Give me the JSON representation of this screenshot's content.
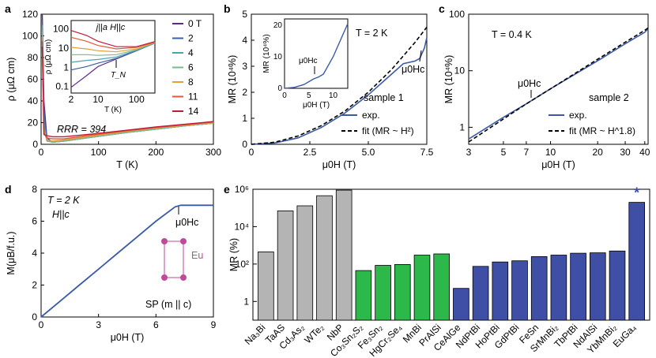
{
  "chart_data": [
    {
      "panel": "a",
      "type": "line",
      "xlabel": "T (K)",
      "ylabel": "ρ (μΩ cm)",
      "xlim": [
        0,
        300
      ],
      "ylim": [
        0,
        120
      ],
      "xticks": [
        "0",
        "100",
        "200",
        "300"
      ],
      "yticks": [
        "0",
        "20",
        "40",
        "60",
        "80",
        "100",
        "120"
      ],
      "annotation": "RRR = 394",
      "series": [
        {
          "name": "0 T",
          "color": "#5b2a86",
          "x": [
            2,
            5,
            10,
            20,
            40,
            80,
            150,
            200,
            250,
            300
          ],
          "y": [
            120,
            40,
            6,
            2,
            3,
            6,
            11,
            14,
            17,
            19.5
          ]
        },
        {
          "name": "2",
          "color": "#3a5fa8",
          "x": [
            2,
            5,
            10,
            20,
            40,
            80,
            150,
            200,
            250,
            300
          ],
          "y": [
            115,
            30,
            4,
            2,
            3,
            6,
            11,
            14,
            17,
            19.5
          ]
        },
        {
          "name": "4",
          "color": "#4aa3b5",
          "x": [
            2,
            5,
            10,
            20,
            40,
            80,
            150,
            200,
            250,
            300
          ],
          "y": [
            110,
            20,
            3,
            2,
            3,
            6,
            11,
            14,
            17,
            19.5
          ]
        },
        {
          "name": "6",
          "color": "#7ab98a",
          "x": [
            2,
            5,
            10,
            20,
            40,
            80,
            150,
            200,
            250,
            300
          ],
          "y": [
            105,
            15,
            3,
            2,
            3,
            6,
            11,
            14,
            17,
            19.5
          ]
        },
        {
          "name": "8",
          "color": "#e2a23a",
          "x": [
            2,
            5,
            10,
            20,
            40,
            80,
            150,
            200,
            250,
            300
          ],
          "y": [
            100,
            12,
            4,
            3,
            4,
            7,
            12,
            15,
            17.5,
            20
          ]
        },
        {
          "name": "11",
          "color": "#e05a3a",
          "x": [
            2,
            5,
            10,
            20,
            40,
            80,
            150,
            200,
            250,
            300
          ],
          "y": [
            95,
            10,
            6,
            5,
            5,
            8,
            12.5,
            15.5,
            18,
            20.5
          ]
        },
        {
          "name": "14",
          "color": "#c21a3a",
          "x": [
            2,
            5,
            10,
            20,
            40,
            80,
            150,
            200,
            250,
            300
          ],
          "y": [
            90,
            9,
            8,
            7,
            7,
            9,
            13,
            16,
            18.5,
            21
          ]
        }
      ],
      "inset": {
        "title": "j||a  H||c",
        "xlabel": "T (K)",
        "ylabel": "ρ (μΩ cm)",
        "xticks": [
          "2",
          "10",
          "100"
        ],
        "yticks": [
          "0.1",
          "1",
          "10",
          "100"
        ],
        "annotation": "T_N"
      }
    },
    {
      "panel": "b",
      "type": "line",
      "xlabel": "μ0H (T)",
      "ylabel": "MR (10⁴%)",
      "xlim": [
        0,
        7.5
      ],
      "ylim": [
        0,
        5
      ],
      "xticks": [
        "0",
        "2.5",
        "5.0",
        "7.5"
      ],
      "yticks": [
        "0",
        "1",
        "2",
        "3",
        "4",
        "5"
      ],
      "annotation_T": "T = 2 K",
      "sample": "sample 1",
      "hc_label": "μ0Hc",
      "series": [
        {
          "name": "exp.",
          "color": "#3a5aa8",
          "style": "solid",
          "x": [
            0,
            1,
            2,
            3,
            4,
            5,
            6,
            6.5,
            7,
            7.2,
            7.4,
            7.5
          ],
          "y": [
            0,
            0.05,
            0.25,
            0.65,
            1.2,
            1.9,
            2.7,
            3.1,
            3.2,
            3.3,
            3.7,
            4.1
          ]
        },
        {
          "name": "fit (MR ~ H²)",
          "color": "#000000",
          "style": "dashed",
          "x": [
            0,
            1,
            2,
            3,
            4,
            5,
            6,
            7,
            7.5
          ],
          "y": [
            0,
            0.08,
            0.32,
            0.72,
            1.28,
            2.0,
            2.88,
            3.92,
            4.5
          ]
        }
      ],
      "inset": {
        "ylabel": "MR (10⁴%)",
        "xlabel": "μ0H (T)",
        "xticks": [
          "0",
          "5",
          "10"
        ],
        "yticks": [
          "0",
          "10",
          "20"
        ],
        "hc_label": "μ0Hc"
      }
    },
    {
      "panel": "c",
      "type": "line",
      "xlabel": "μ0H (T)",
      "ylabel": "MR (10⁴%)",
      "xscale": "log",
      "yscale": "log",
      "xlim": [
        3,
        42
      ],
      "ylim": [
        0.5,
        100
      ],
      "xticks": [
        "3",
        "5",
        "7",
        "10",
        "20",
        "30",
        "40"
      ],
      "yticks": [
        "1",
        "10",
        "100"
      ],
      "annotation_T": "T = 0.4 K",
      "sample": "sample 2",
      "hc_label": "μ0Hc",
      "series": [
        {
          "name": "exp.",
          "color": "#3a5aa8",
          "style": "solid",
          "x": [
            3,
            5,
            7,
            10,
            20,
            30,
            40,
            42
          ],
          "y": [
            0.62,
            1.5,
            2.6,
            4.8,
            15,
            30,
            48,
            55
          ]
        },
        {
          "name": "fit (MR ~ H^1.8)",
          "color": "#000000",
          "style": "dashed",
          "x": [
            3,
            5,
            7,
            10,
            20,
            30,
            40,
            42
          ],
          "y": [
            0.55,
            1.4,
            2.6,
            4.8,
            16,
            32,
            52,
            57
          ]
        }
      ]
    },
    {
      "panel": "d",
      "type": "line",
      "xlabel": "μ0H (T)",
      "ylabel": "M(μB/f.u.)",
      "xlim": [
        0,
        9
      ],
      "ylim": [
        0,
        8
      ],
      "xticks": [
        "0",
        "3",
        "6",
        "9"
      ],
      "yticks": [
        "0",
        "2",
        "4",
        "6",
        "8"
      ],
      "annotation_T": "T = 2 K",
      "annotation_H": "H||c",
      "hc_label": "μ0Hc",
      "element": "Eu",
      "structure_label": "SP (m || c)",
      "series": [
        {
          "name": "M",
          "color": "#3a5aa8",
          "x": [
            0,
            1,
            2,
            3,
            4,
            5,
            6,
            7,
            7.3,
            8,
            9
          ],
          "y": [
            0,
            1.0,
            2.0,
            3.0,
            4.0,
            5.0,
            6.0,
            6.9,
            7.0,
            7.0,
            7.0
          ]
        }
      ]
    },
    {
      "panel": "e",
      "type": "bar",
      "ylabel": "MR (%)",
      "yscale": "log",
      "ylim": [
        0.1,
        1000000
      ],
      "yticks": [
        "1",
        "10²",
        "10⁴",
        "10⁶"
      ],
      "star": "*",
      "categories": [
        "Na3Bi",
        "TaAS",
        "Cd3As2",
        "WTe2",
        "NbP",
        "Co3Sn2S2",
        "Fe3Sn2",
        "HgCr2Se4",
        "MnBi",
        "PrAlSi",
        "CeAlGe",
        "NdPtBi",
        "HoPtBi",
        "GdPtBi",
        "FeSn",
        "SrMnBi2",
        "TbPtBi",
        "NdAlSi",
        "YbMnBi2",
        "EuGa4"
      ],
      "category_labels": [
        "Na₃Bi",
        "TaAS",
        "Cd₃As₂",
        "WTe₂",
        "NbP",
        "Co₃Sn₂S₂",
        "Fe₃Sn₂",
        "HgCr₂Se₄",
        "MnBi",
        "PrAlSi",
        "CeAlGe",
        "NdPtBi",
        "HoPtBi",
        "GdPtBi",
        "FeSn",
        "SrMnBi₂",
        "TbPtBi",
        "NdAlSi",
        "YbMnBi₂",
        "EuGa₄"
      ],
      "values": [
        450,
        70000,
        130000,
        450000,
        900000,
        45,
        85,
        95,
        300,
        350,
        5,
        75,
        130,
        150,
        250,
        300,
        380,
        400,
        500,
        200000
      ],
      "groups": [
        "gray",
        "gray",
        "gray",
        "gray",
        "gray",
        "green",
        "green",
        "green",
        "green",
        "green",
        "blue",
        "blue",
        "blue",
        "blue",
        "blue",
        "blue",
        "blue",
        "blue",
        "blue",
        "blue"
      ],
      "colors": {
        "gray": "#b4b4b4",
        "green": "#2db84a",
        "blue": "#3f4fa6"
      }
    }
  ],
  "legend_a": [
    "0 T",
    "2",
    "4",
    "6",
    "8",
    "11",
    "14"
  ]
}
